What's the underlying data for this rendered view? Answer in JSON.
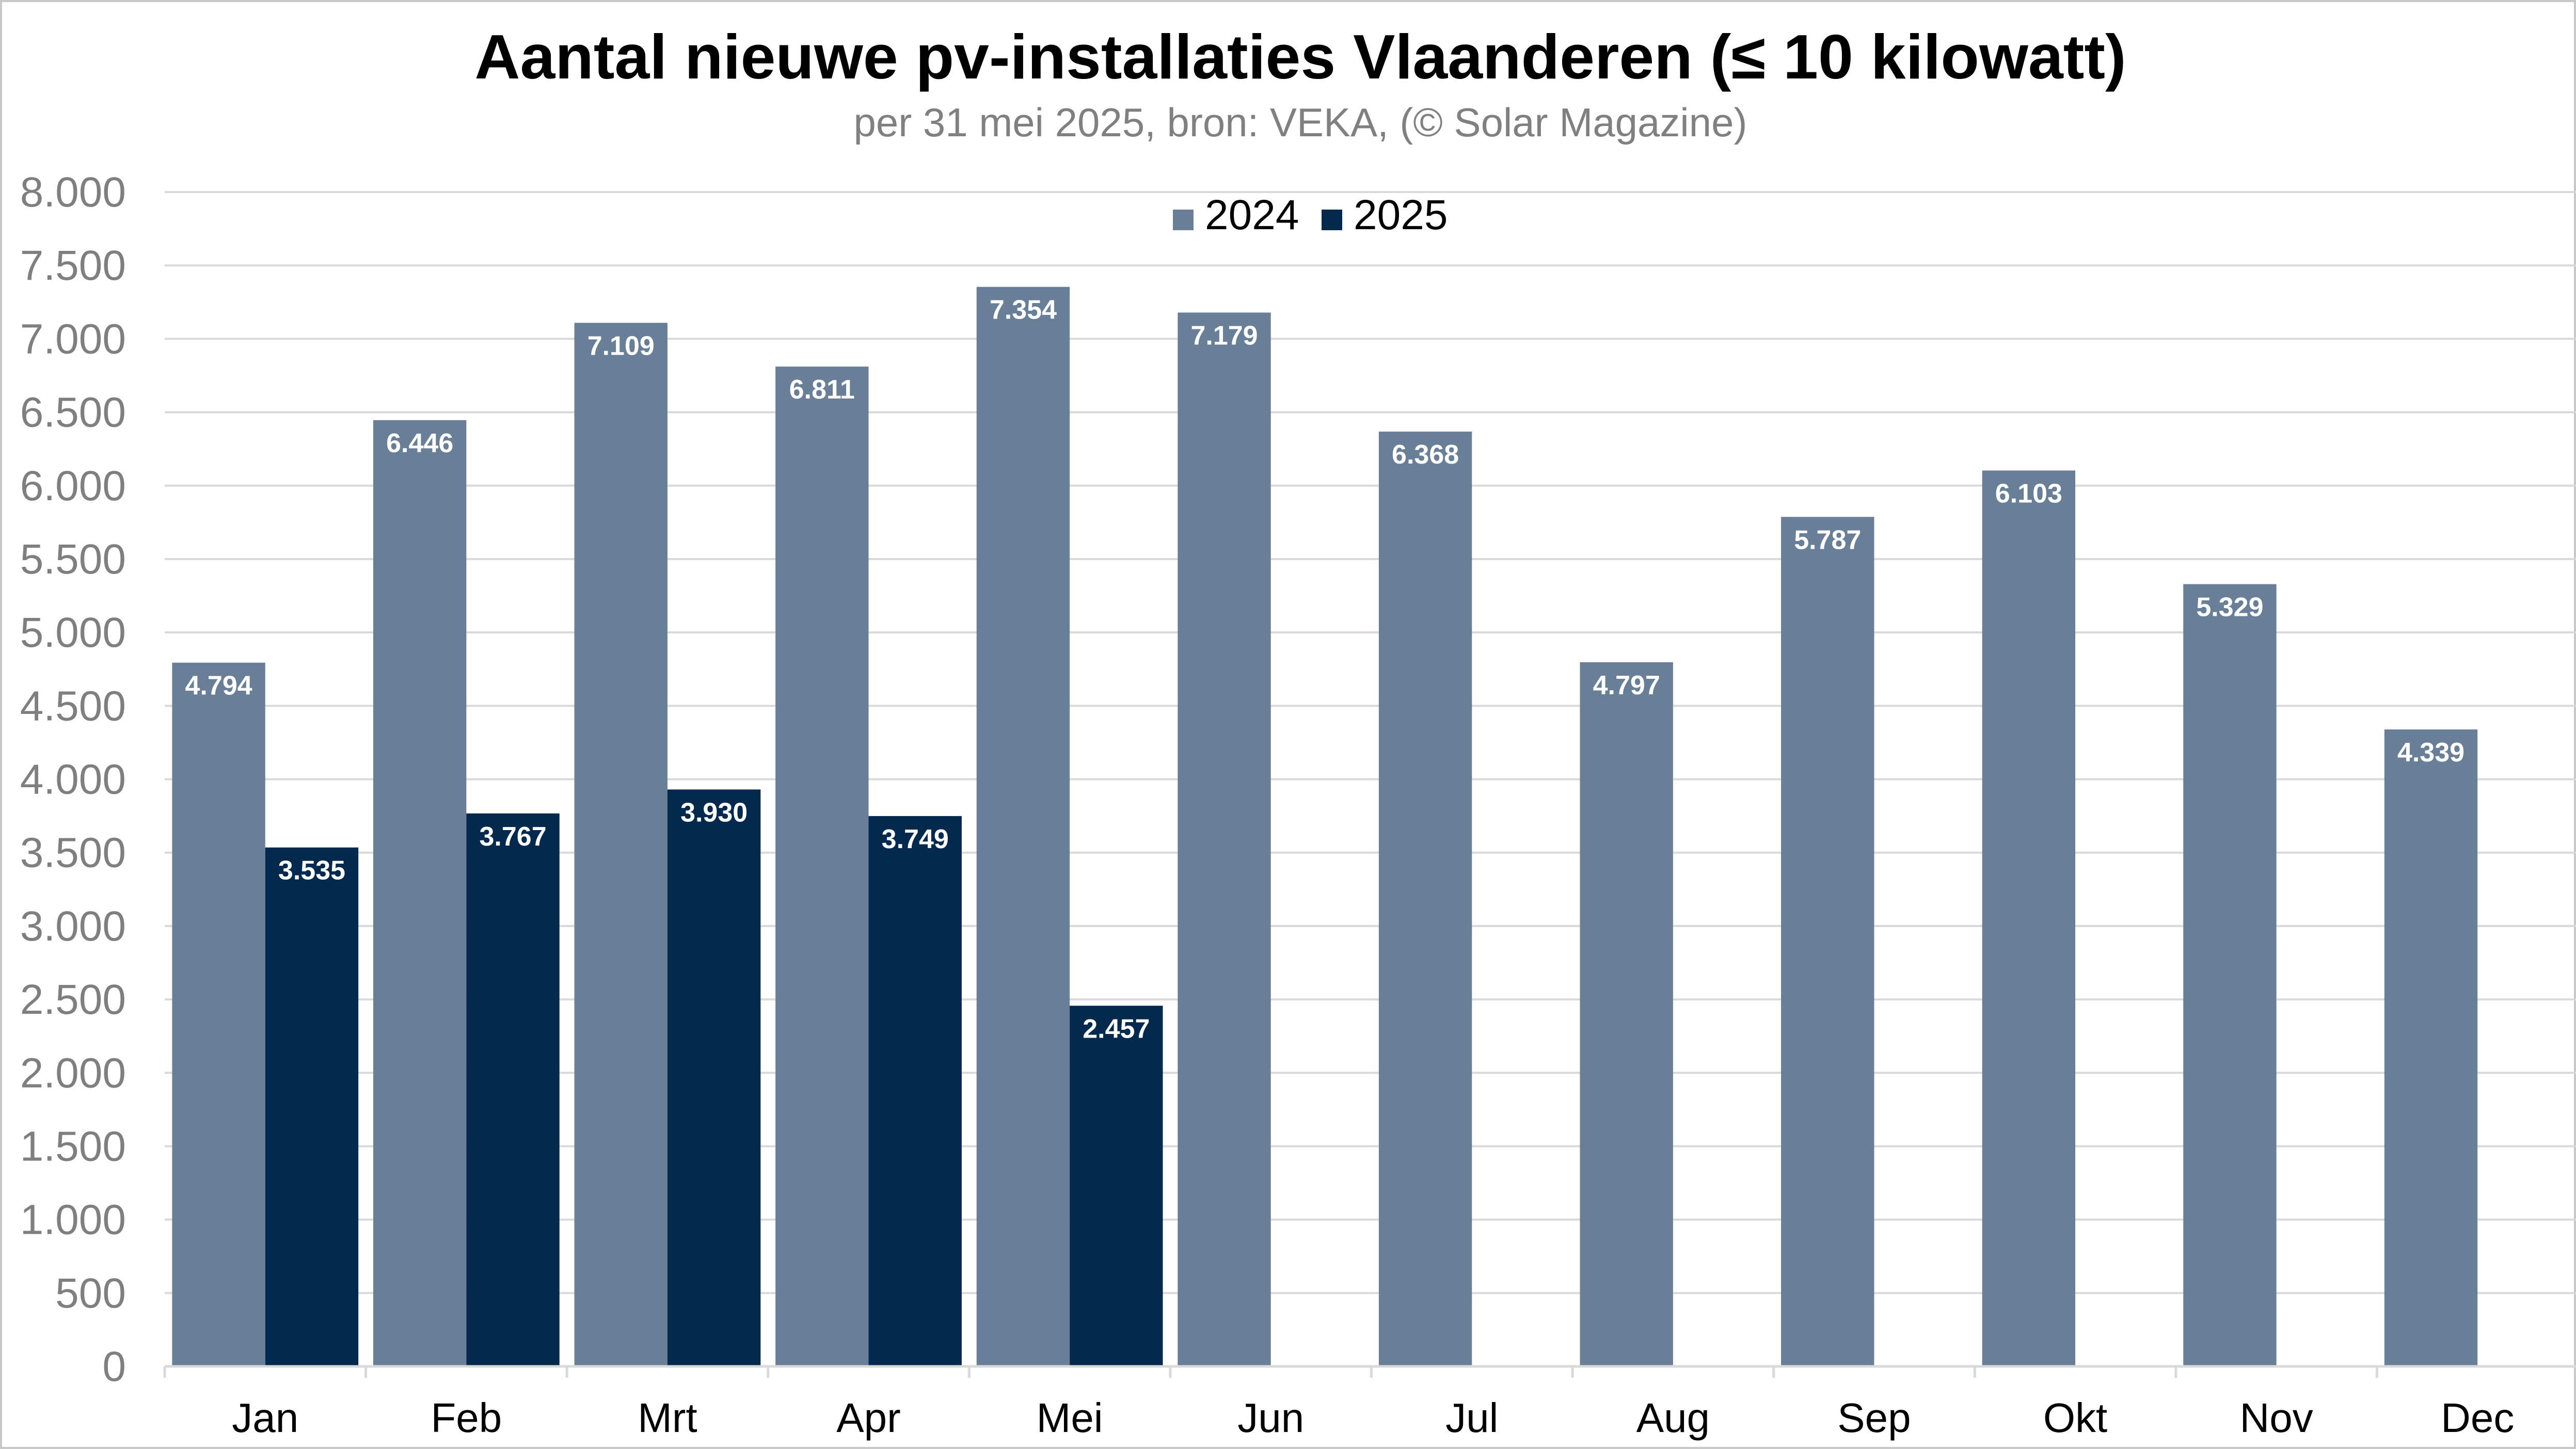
{
  "chart_data": {
    "type": "bar",
    "title": "Aantal nieuwe pv-installaties Vlaanderen (≤ 10 kilowatt)",
    "subtitle": "per 31 mei 2025, bron: VEKA, (© Solar Magazine)",
    "categories": [
      "Jan",
      "Feb",
      "Mrt",
      "Apr",
      "Mei",
      "Jun",
      "Jul",
      "Aug",
      "Sep",
      "Okt",
      "Nov",
      "Dec"
    ],
    "series": [
      {
        "name": "2024",
        "color": "#687f97",
        "values": [
          4794,
          6446,
          7109,
          6811,
          7354,
          7179,
          6368,
          4797,
          5787,
          6103,
          5329,
          4339
        ],
        "labels": [
          "4.794",
          "6.446",
          "7.109",
          "6.811",
          "7.354",
          "7.179",
          "6.368",
          "4.797",
          "5.787",
          "6.103",
          "5.329",
          "4.339"
        ]
      },
      {
        "name": "2025",
        "color": "#032a4e",
        "values": [
          3535,
          3767,
          3930,
          3749,
          2457,
          null,
          null,
          null,
          null,
          null,
          null,
          null
        ],
        "labels": [
          "3.535",
          "3.767",
          "3.930",
          "3.749",
          "2.457",
          null,
          null,
          null,
          null,
          null,
          null,
          null
        ]
      }
    ],
    "ylim": [
      0,
      8000
    ],
    "yticks": [
      0,
      500,
      1000,
      1500,
      2000,
      2500,
      3000,
      3500,
      4000,
      4500,
      5000,
      5500,
      6000,
      6500,
      7000,
      7500,
      8000
    ],
    "ytick_labels": [
      "0",
      "500",
      "1.000",
      "1.500",
      "2.000",
      "2.500",
      "3.000",
      "3.500",
      "4.000",
      "4.500",
      "5.000",
      "5.500",
      "6.000",
      "6.500",
      "7.000",
      "7.500",
      "8.000"
    ],
    "xlabel": "",
    "ylabel": "",
    "grid": true,
    "legend_position": "top-center"
  }
}
